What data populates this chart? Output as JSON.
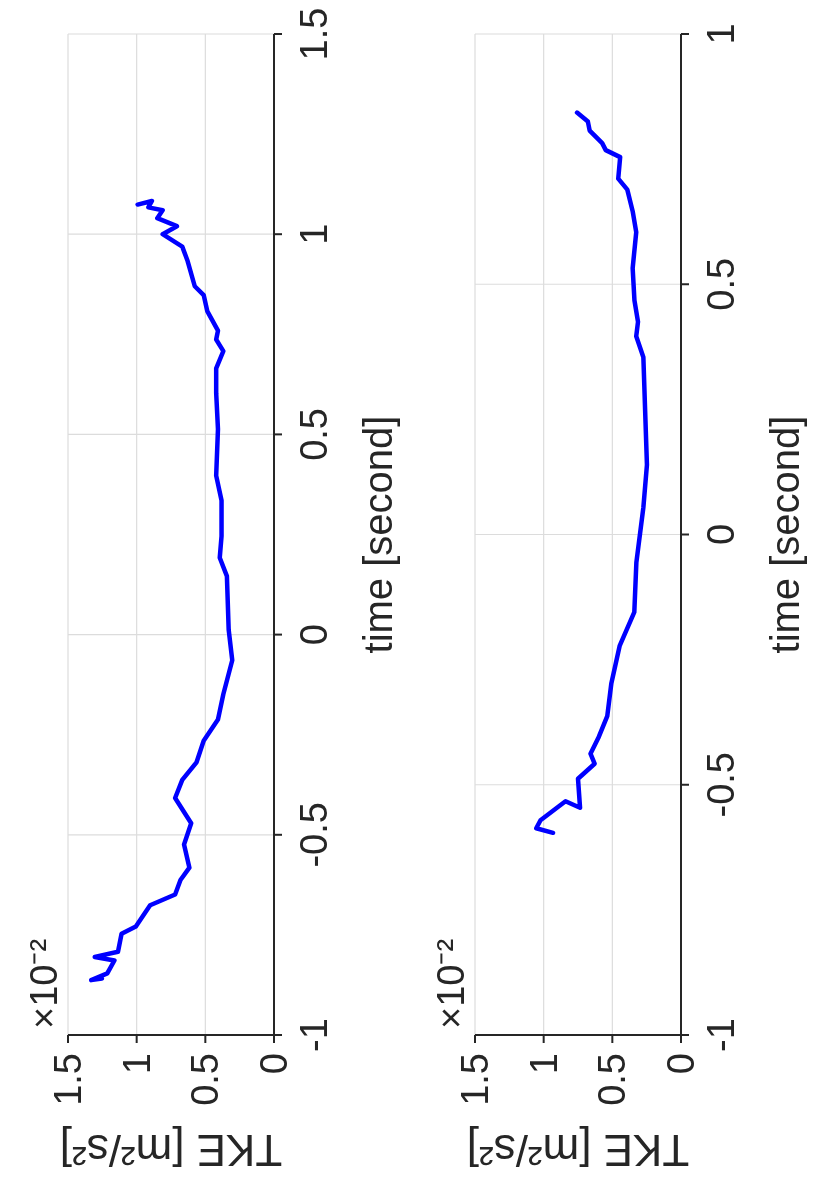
{
  "chart_data": [
    {
      "type": "line",
      "xlabel": "TKE [m²/s²]",
      "ylabel": "time [second]",
      "annotations": [
        "×10⁻²"
      ],
      "grid": true,
      "marker": "none",
      "x": [
        1.253,
        1.331,
        1.214,
        1.162,
        1.305,
        1.136,
        1.11,
        1.006,
        0.902,
        0.72,
        0.681,
        0.616,
        0.655,
        0.603,
        0.72,
        0.668,
        0.564,
        0.512,
        0.408,
        0.369,
        0.304,
        0.33,
        0.343,
        0.395,
        0.382,
        0.382,
        0.421,
        0.408,
        0.421,
        0.421,
        0.369,
        0.421,
        0.408,
        0.486,
        0.512,
        0.577,
        0.629,
        0.668,
        0.811,
        0.707,
        0.85,
        0.811,
        0.915,
        0.889,
        0.993
      ],
      "series": [
        {
          "color": "#0000ff",
          "values": [
            -0.859,
            -0.863,
            -0.846,
            -0.814,
            -0.805,
            -0.792,
            -0.747,
            -0.729,
            -0.676,
            -0.649,
            -0.613,
            -0.582,
            -0.524,
            -0.471,
            -0.408,
            -0.363,
            -0.319,
            -0.265,
            -0.212,
            -0.149,
            -0.064,
            0.012,
            0.146,
            0.192,
            0.246,
            0.335,
            0.397,
            0.513,
            0.603,
            0.665,
            0.708,
            0.737,
            0.759,
            0.808,
            0.848,
            0.87,
            0.933,
            0.969,
            1.0,
            1.02,
            1.04,
            1.06,
            1.067,
            1.083,
            1.074
          ]
        }
      ],
      "xlim": [
        1.5,
        0
      ],
      "xticks": [
        0,
        0.5,
        1,
        1.5
      ],
      "ylim": [
        -1,
        1.5
      ],
      "yticks": [
        -1,
        -0.5,
        0,
        0.5,
        1,
        1.5
      ]
    },
    {
      "type": "line",
      "xlabel": "TKE [m²/s²]",
      "ylabel": "time [second]",
      "annotations": [
        "×10⁻²"
      ],
      "grid": true,
      "marker": "none",
      "x": [
        0.932,
        1.054,
        1.023,
        0.841,
        0.735,
        0.75,
        0.629,
        0.659,
        0.598,
        0.537,
        0.507,
        0.446,
        0.34,
        0.325,
        0.274,
        0.248,
        0.261,
        0.274,
        0.326,
        0.313,
        0.339,
        0.352,
        0.326,
        0.352,
        0.391,
        0.457,
        0.443,
        0.548,
        0.574,
        0.665,
        0.678,
        0.757
      ],
      "series": [
        {
          "color": "#0000ff",
          "values": [
            -0.596,
            -0.587,
            -0.571,
            -0.533,
            -0.546,
            -0.488,
            -0.458,
            -0.438,
            -0.404,
            -0.363,
            -0.297,
            -0.222,
            -0.155,
            -0.056,
            0.054,
            0.139,
            0.246,
            0.354,
            0.396,
            0.425,
            0.468,
            0.532,
            0.604,
            0.646,
            0.689,
            0.711,
            0.754,
            0.768,
            0.782,
            0.807,
            0.825,
            0.843
          ]
        }
      ],
      "xlim": [
        1.5,
        0
      ],
      "xticks": [
        0,
        0.5,
        1,
        1.5
      ],
      "ylim": [
        -1,
        1
      ],
      "yticks": [
        -1,
        -0.5,
        0,
        0.5,
        1
      ]
    }
  ]
}
